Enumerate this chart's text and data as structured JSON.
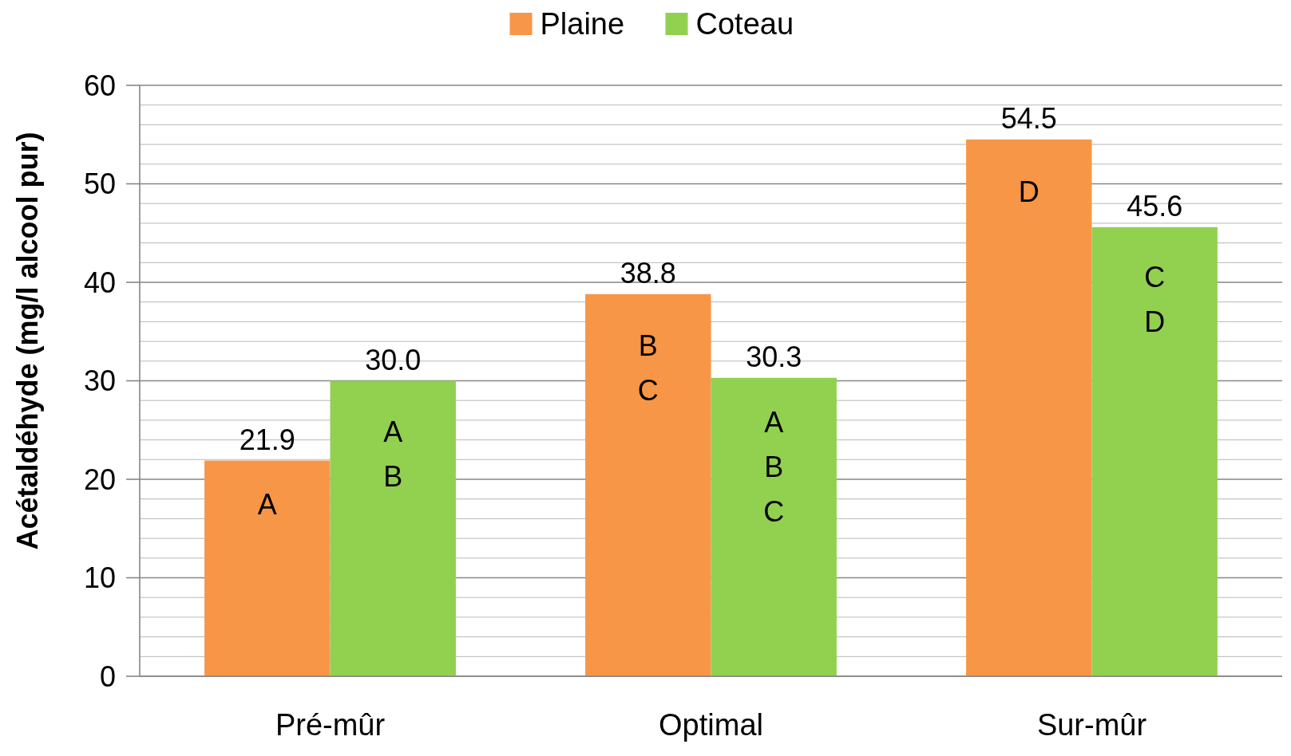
{
  "chart_data": {
    "type": "bar",
    "ylabel": "Acétaldéhyde (mg/l alcool pur)",
    "categories": [
      "Pré-mûr",
      "Optimal",
      "Sur-mûr"
    ],
    "series": [
      {
        "name": "Plaine",
        "color": "#f79646",
        "values": [
          21.9,
          38.8,
          54.5
        ]
      },
      {
        "name": "Coteau",
        "color": "#92d050",
        "values": [
          30.0,
          30.3,
          45.6
        ]
      }
    ],
    "ylim": [
      0,
      60
    ],
    "yticks": [
      0,
      {
        "value": 2,
        "label": null
      },
      {
        "value": 4,
        "label": null
      },
      {
        "value": 6,
        "label": null
      },
      {
        "value": 8,
        "label": null
      },
      10,
      {
        "value": 12,
        "label": null
      },
      {
        "value": 14,
        "label": null
      },
      {
        "value": 16,
        "label": null
      },
      {
        "value": 18,
        "label": null
      },
      20,
      {
        "value": 22,
        "label": null
      },
      {
        "value": 24,
        "label": null
      },
      {
        "value": 26,
        "label": null
      },
      {
        "value": 28,
        "label": null
      },
      30,
      {
        "value": 32,
        "label": null
      },
      {
        "value": 34,
        "label": null
      },
      {
        "value": 36,
        "label": null
      },
      {
        "value": 38,
        "label": null
      },
      40,
      {
        "value": 42,
        "label": null
      },
      {
        "value": 44,
        "label": null
      },
      {
        "value": 46,
        "label": null
      },
      {
        "value": 48,
        "label": null
      },
      50,
      {
        "value": 52,
        "label": null
      },
      {
        "value": 54,
        "label": null
      },
      {
        "value": 56,
        "label": null
      },
      {
        "value": 58,
        "label": null
      },
      60
    ],
    "value_labels": [
      [
        "21.9",
        "38.8",
        "54.5"
      ],
      [
        "30.0",
        "30.3",
        "45.6"
      ]
    ],
    "annotations": [
      {
        "text": "A",
        "x": "Pré-mûr",
        "y": 17.5
      },
      {
        "text": "A B",
        "x": "Pré-mûr",
        "y": 22.6
      },
      {
        "text": "B C",
        "x": "Optimal",
        "y": 31.3
      },
      {
        "text": "A B C",
        "x": "Optimal",
        "y": 21.3
      },
      {
        "text": "D",
        "x": "Sur-mûr",
        "y": 49.2
      },
      {
        "text": "C D",
        "x": "Sur-mûr",
        "y": 38.3
      }
    ],
    "grid": "y",
    "legend": "top"
  }
}
